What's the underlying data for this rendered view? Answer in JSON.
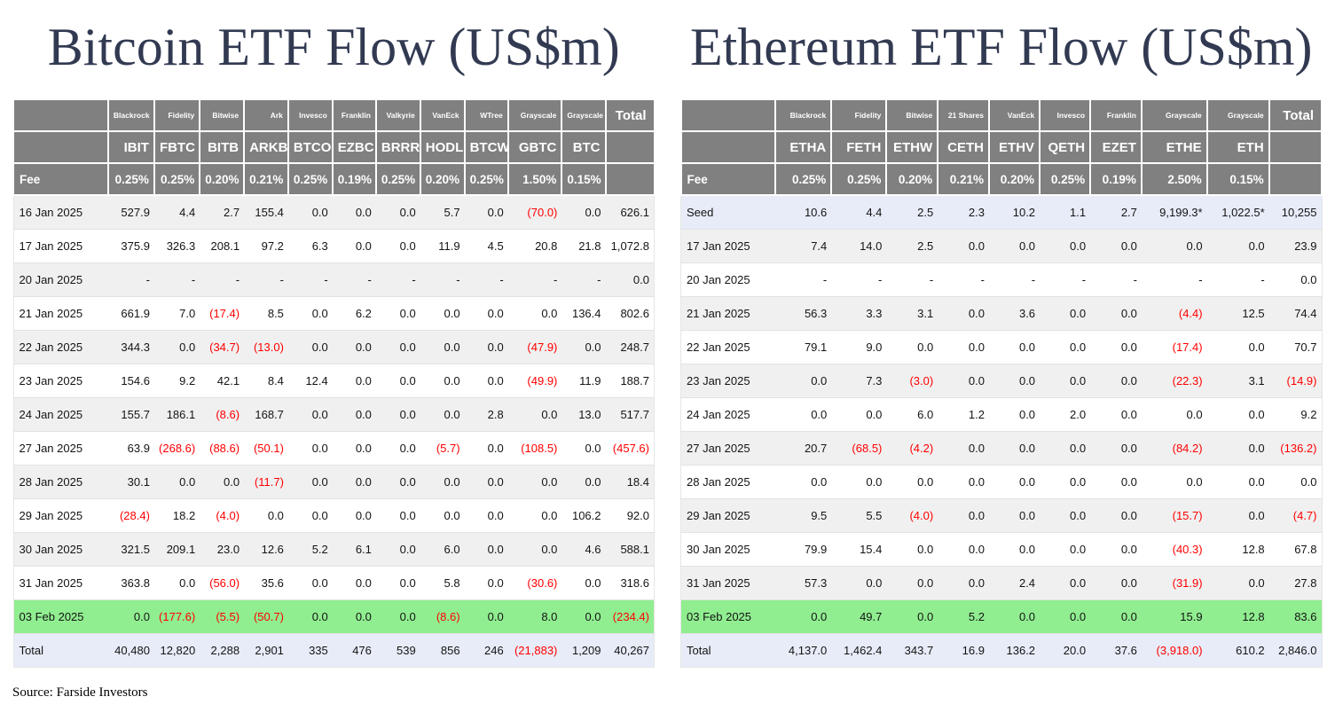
{
  "source_note": "Source: Farside Investors",
  "colors": {
    "header_bg": "#808080",
    "header_text": "#ffffff",
    "stripe_bg": "#f0f0f0",
    "seed_total_row_bg": "#e7ecf8",
    "latest_row_bg": "#90ee90",
    "negative_text": "#ff0000",
    "title_text": "#323a52"
  },
  "chart_data": [
    {
      "type": "table",
      "title": "Bitcoin ETF Flow (US$m)",
      "fee_row_label": "Fee",
      "total_column_label": "Total",
      "providers": [
        "Blackrock",
        "Fidelity",
        "Bitwise",
        "Ark",
        "Invesco",
        "Franklin",
        "Valkyrie",
        "VanEck",
        "WTree",
        "Grayscale",
        "Grayscale"
      ],
      "tickers": [
        "IBIT",
        "FBTC",
        "BITB",
        "ARKB",
        "BTCO",
        "EZBC",
        "BRRR",
        "HODL",
        "BTCW",
        "GBTC",
        "BTC"
      ],
      "fees": [
        "0.25%",
        "0.25%",
        "0.20%",
        "0.21%",
        "0.25%",
        "0.19%",
        "0.25%",
        "0.20%",
        "0.25%",
        "1.50%",
        "0.15%"
      ],
      "rows": [
        {
          "label": "16 Jan 2025",
          "type": "normal",
          "values": [
            "527.9",
            "4.4",
            "2.7",
            "155.4",
            "0.0",
            "0.0",
            "0.0",
            "5.7",
            "0.0",
            "(70.0)",
            "0.0",
            "626.1"
          ]
        },
        {
          "label": "17 Jan 2025",
          "type": "normal",
          "values": [
            "375.9",
            "326.3",
            "208.1",
            "97.2",
            "6.3",
            "0.0",
            "0.0",
            "11.9",
            "4.5",
            "20.8",
            "21.8",
            "1,072.8"
          ]
        },
        {
          "label": "20 Jan 2025",
          "type": "normal",
          "values": [
            "-",
            "-",
            "-",
            "-",
            "-",
            "-",
            "-",
            "-",
            "-",
            "-",
            "-",
            "0.0"
          ]
        },
        {
          "label": "21 Jan 2025",
          "type": "normal",
          "values": [
            "661.9",
            "7.0",
            "(17.4)",
            "8.5",
            "0.0",
            "6.2",
            "0.0",
            "0.0",
            "0.0",
            "0.0",
            "136.4",
            "802.6"
          ]
        },
        {
          "label": "22 Jan 2025",
          "type": "normal",
          "values": [
            "344.3",
            "0.0",
            "(34.7)",
            "(13.0)",
            "0.0",
            "0.0",
            "0.0",
            "0.0",
            "0.0",
            "(47.9)",
            "0.0",
            "248.7"
          ]
        },
        {
          "label": "23 Jan 2025",
          "type": "normal",
          "values": [
            "154.6",
            "9.2",
            "42.1",
            "8.4",
            "12.4",
            "0.0",
            "0.0",
            "0.0",
            "0.0",
            "(49.9)",
            "11.9",
            "188.7"
          ]
        },
        {
          "label": "24 Jan 2025",
          "type": "normal",
          "values": [
            "155.7",
            "186.1",
            "(8.6)",
            "168.7",
            "0.0",
            "0.0",
            "0.0",
            "0.0",
            "2.8",
            "0.0",
            "13.0",
            "517.7"
          ]
        },
        {
          "label": "27 Jan 2025",
          "type": "normal",
          "values": [
            "63.9",
            "(268.6)",
            "(88.6)",
            "(50.1)",
            "0.0",
            "0.0",
            "0.0",
            "(5.7)",
            "0.0",
            "(108.5)",
            "0.0",
            "(457.6)"
          ]
        },
        {
          "label": "28 Jan 2025",
          "type": "normal",
          "values": [
            "30.1",
            "0.0",
            "0.0",
            "(11.7)",
            "0.0",
            "0.0",
            "0.0",
            "0.0",
            "0.0",
            "0.0",
            "0.0",
            "18.4"
          ]
        },
        {
          "label": "29 Jan 2025",
          "type": "normal",
          "values": [
            "(28.4)",
            "18.2",
            "(4.0)",
            "0.0",
            "0.0",
            "0.0",
            "0.0",
            "0.0",
            "0.0",
            "0.0",
            "106.2",
            "92.0"
          ]
        },
        {
          "label": "30 Jan 2025",
          "type": "normal",
          "values": [
            "321.5",
            "209.1",
            "23.0",
            "12.6",
            "5.2",
            "6.1",
            "0.0",
            "6.0",
            "0.0",
            "0.0",
            "4.6",
            "588.1"
          ]
        },
        {
          "label": "31 Jan 2025",
          "type": "normal",
          "values": [
            "363.8",
            "0.0",
            "(56.0)",
            "35.6",
            "0.0",
            "0.0",
            "0.0",
            "5.8",
            "0.0",
            "(30.6)",
            "0.0",
            "318.6"
          ]
        },
        {
          "label": "03 Feb 2025",
          "type": "highlight",
          "values": [
            "0.0",
            "(177.6)",
            "(5.5)",
            "(50.7)",
            "0.0",
            "0.0",
            "0.0",
            "(8.6)",
            "0.0",
            "8.0",
            "0.0",
            "(234.4)"
          ]
        },
        {
          "label": "Total",
          "type": "total",
          "values": [
            "40,480",
            "12,820",
            "2,288",
            "2,901",
            "335",
            "476",
            "539",
            "856",
            "246",
            "(21,883)",
            "1,209",
            "40,267"
          ]
        }
      ]
    },
    {
      "type": "table",
      "title": "Ethereum ETF Flow (US$m)",
      "fee_row_label": "Fee",
      "total_column_label": "Total",
      "providers": [
        "Blackrock",
        "Fidelity",
        "Bitwise",
        "21 Shares",
        "VanEck",
        "Invesco",
        "Franklin",
        "Grayscale",
        "Grayscale"
      ],
      "tickers": [
        "ETHA",
        "FETH",
        "ETHW",
        "CETH",
        "ETHV",
        "QETH",
        "EZET",
        "ETHE",
        "ETH"
      ],
      "fees": [
        "0.25%",
        "0.25%",
        "0.20%",
        "0.21%",
        "0.20%",
        "0.25%",
        "0.19%",
        "2.50%",
        "0.15%"
      ],
      "rows": [
        {
          "label": "Seed",
          "type": "seed",
          "values": [
            "10.6",
            "4.4",
            "2.5",
            "2.3",
            "10.2",
            "1.1",
            "2.7",
            "9,199.3*",
            "1,022.5*",
            "10,255"
          ]
        },
        {
          "label": "17 Jan 2025",
          "type": "normal",
          "values": [
            "7.4",
            "14.0",
            "2.5",
            "0.0",
            "0.0",
            "0.0",
            "0.0",
            "0.0",
            "0.0",
            "23.9"
          ]
        },
        {
          "label": "20 Jan 2025",
          "type": "normal",
          "values": [
            "-",
            "-",
            "-",
            "-",
            "-",
            "-",
            "-",
            "-",
            "-",
            "0.0"
          ]
        },
        {
          "label": "21 Jan 2025",
          "type": "normal",
          "values": [
            "56.3",
            "3.3",
            "3.1",
            "0.0",
            "3.6",
            "0.0",
            "0.0",
            "(4.4)",
            "12.5",
            "74.4"
          ]
        },
        {
          "label": "22 Jan 2025",
          "type": "normal",
          "values": [
            "79.1",
            "9.0",
            "0.0",
            "0.0",
            "0.0",
            "0.0",
            "0.0",
            "(17.4)",
            "0.0",
            "70.7"
          ]
        },
        {
          "label": "23 Jan 2025",
          "type": "normal",
          "values": [
            "0.0",
            "7.3",
            "(3.0)",
            "0.0",
            "0.0",
            "0.0",
            "0.0",
            "(22.3)",
            "3.1",
            "(14.9)"
          ]
        },
        {
          "label": "24 Jan 2025",
          "type": "normal",
          "values": [
            "0.0",
            "0.0",
            "6.0",
            "1.2",
            "0.0",
            "2.0",
            "0.0",
            "0.0",
            "0.0",
            "9.2"
          ]
        },
        {
          "label": "27 Jan 2025",
          "type": "normal",
          "values": [
            "20.7",
            "(68.5)",
            "(4.2)",
            "0.0",
            "0.0",
            "0.0",
            "0.0",
            "(84.2)",
            "0.0",
            "(136.2)"
          ]
        },
        {
          "label": "28 Jan 2025",
          "type": "normal",
          "values": [
            "0.0",
            "0.0",
            "0.0",
            "0.0",
            "0.0",
            "0.0",
            "0.0",
            "0.0",
            "0.0",
            "0.0"
          ]
        },
        {
          "label": "29 Jan 2025",
          "type": "normal",
          "values": [
            "9.5",
            "5.5",
            "(4.0)",
            "0.0",
            "0.0",
            "0.0",
            "0.0",
            "(15.7)",
            "0.0",
            "(4.7)"
          ]
        },
        {
          "label": "30 Jan 2025",
          "type": "normal",
          "values": [
            "79.9",
            "15.4",
            "0.0",
            "0.0",
            "0.0",
            "0.0",
            "0.0",
            "(40.3)",
            "12.8",
            "67.8"
          ]
        },
        {
          "label": "31 Jan 2025",
          "type": "normal",
          "values": [
            "57.3",
            "0.0",
            "0.0",
            "0.0",
            "2.4",
            "0.0",
            "0.0",
            "(31.9)",
            "0.0",
            "27.8"
          ]
        },
        {
          "label": "03 Feb 2025",
          "type": "highlight",
          "values": [
            "0.0",
            "49.7",
            "0.0",
            "5.2",
            "0.0",
            "0.0",
            "0.0",
            "15.9",
            "12.8",
            "83.6"
          ]
        },
        {
          "label": "Total",
          "type": "total",
          "values": [
            "4,137.0",
            "1,462.4",
            "343.7",
            "16.9",
            "136.2",
            "20.0",
            "37.6",
            "(3,918.0)",
            "610.2",
            "2,846.0"
          ]
        }
      ]
    }
  ]
}
